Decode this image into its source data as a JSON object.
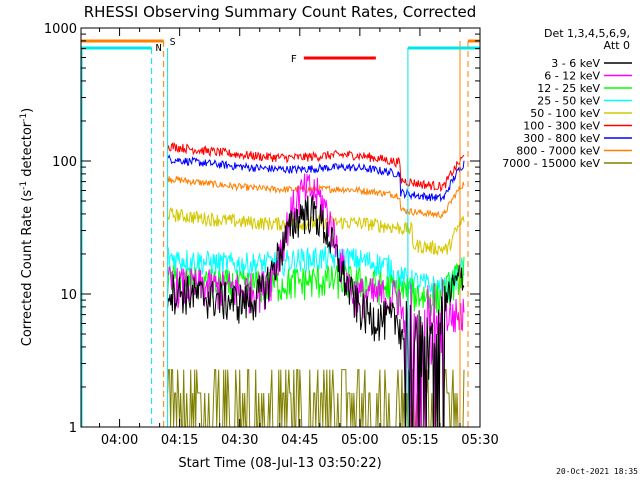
{
  "chart_data": {
    "type": "line",
    "title": "RHESSI Observing Summary Count Rates, Corrected",
    "xlabel": "Start Time (08-Jul-13 03:50:22)",
    "ylabel": "Corrected Count Rate (s⁻¹ detector⁻¹)",
    "ylabel_main": "Corrected Count Rate (s",
    "ylabel_sup1": "-1",
    "ylabel_mid": " detector",
    "ylabel_sup2": "-1",
    "ylabel_end": ")",
    "yscale": "log",
    "ylim": [
      1,
      1000
    ],
    "xlim": [
      "03:50:22",
      "05:30:00"
    ],
    "x_ticks": [
      "04:00",
      "04:15",
      "04:30",
      "04:45",
      "05:00",
      "05:15",
      "05:30"
    ],
    "y_tick_labels": [
      "1",
      "10",
      "100",
      "1000"
    ],
    "legend_header": [
      "Det 1,3,4,5,6,9,",
      "Att 0"
    ],
    "legend_placement": "right",
    "timestamp": "20-Oct-2021 18:35",
    "flags": [
      {
        "label": "S",
        "color": "#ff8000"
      },
      {
        "label": "N",
        "color": "#00e5e5"
      },
      {
        "label": "F",
        "color": "#ff0000"
      }
    ],
    "series": [
      {
        "name": "3 - 6 keV",
        "color": "#000000"
      },
      {
        "name": "6 - 12 keV",
        "color": "#ff00ff"
      },
      {
        "name": "12 - 25 keV",
        "color": "#00ff00"
      },
      {
        "name": "25 - 50 keV",
        "color": "#00ffff"
      },
      {
        "name": "50 - 100 keV",
        "color": "#d4c800"
      },
      {
        "name": "100 - 300 keV",
        "color": "#ff0000"
      },
      {
        "name": "300 - 800 keV",
        "color": "#0000ff"
      },
      {
        "name": "800 - 7000 keV",
        "color": "#ff8000"
      },
      {
        "name": "7000 - 15000 keV",
        "color": "#808000"
      }
    ]
  }
}
